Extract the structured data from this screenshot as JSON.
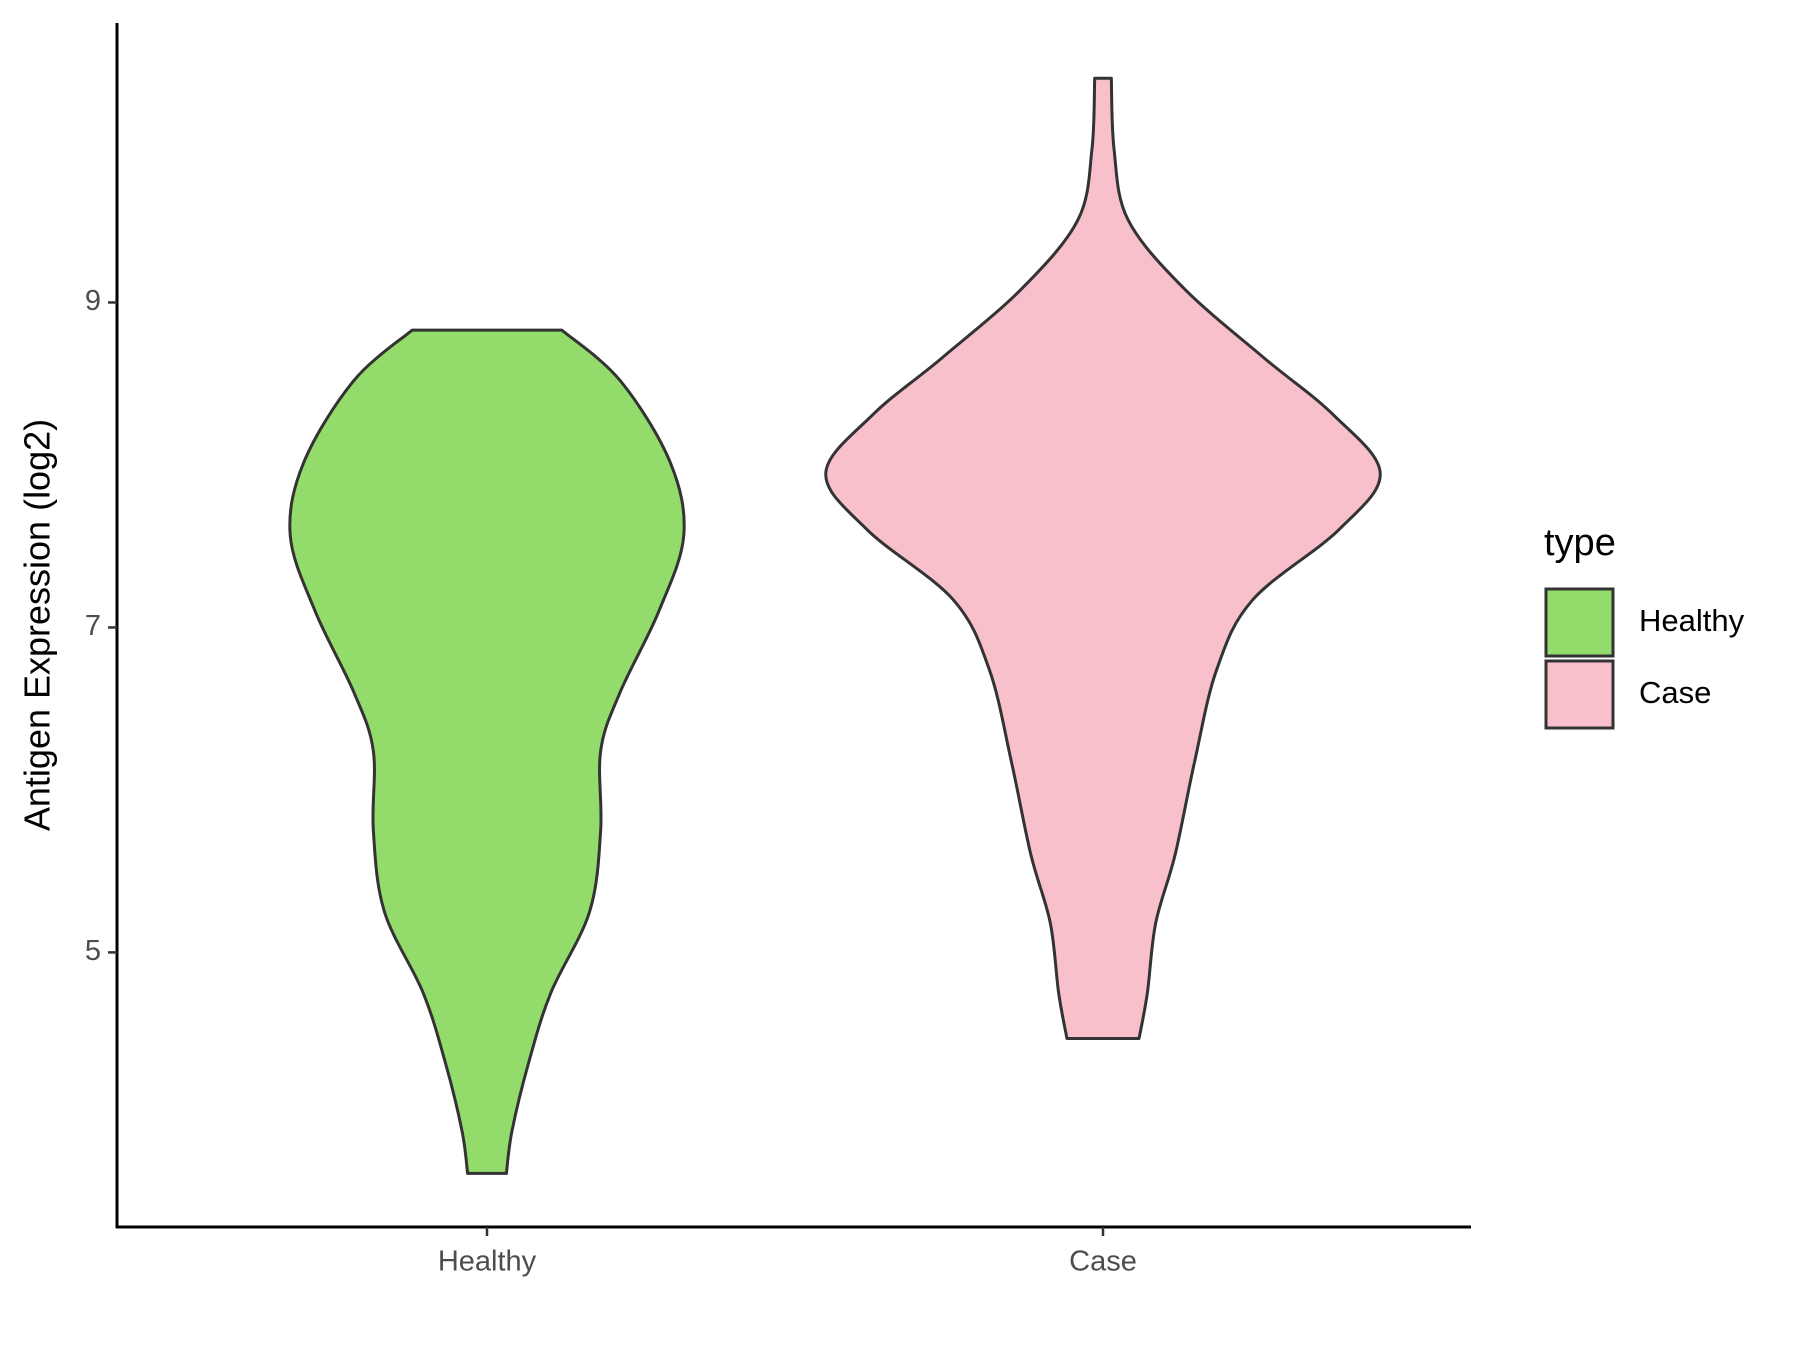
{
  "chart_data": {
    "type": "violin",
    "y_label": "Antigen Expression (log2)",
    "categories": [
      "Healthy",
      "Case"
    ],
    "legend_title": "type",
    "legend_position": "right",
    "ylim": [
      3.31,
      10.72
    ],
    "yticks": [
      5,
      7,
      9
    ],
    "grid": false,
    "series": [
      {
        "name": "Healthy",
        "color": "#93dc6c",
        "y": [
          8.83,
          8.52,
          8.02,
          7.57,
          7.1,
          6.6,
          6.24,
          5.75,
          5.25,
          4.75,
          4.32,
          3.9,
          3.64
        ],
        "width": [
          0.27,
          0.48,
          0.66,
          0.71,
          0.62,
          0.48,
          0.41,
          0.41,
          0.37,
          0.23,
          0.15,
          0.09,
          0.07
        ]
      },
      {
        "name": "Case",
        "color": "#f8c0cb",
        "y": [
          10.38,
          9.94,
          9.51,
          9.09,
          8.66,
          8.31,
          7.95,
          7.6,
          7.17,
          6.74,
          6.17,
          5.6,
          5.18,
          4.75,
          4.47
        ],
        "width": [
          0.03,
          0.04,
          0.09,
          0.29,
          0.58,
          0.83,
          1.0,
          0.85,
          0.54,
          0.41,
          0.33,
          0.26,
          0.19,
          0.16,
          0.13
        ]
      }
    ]
  }
}
